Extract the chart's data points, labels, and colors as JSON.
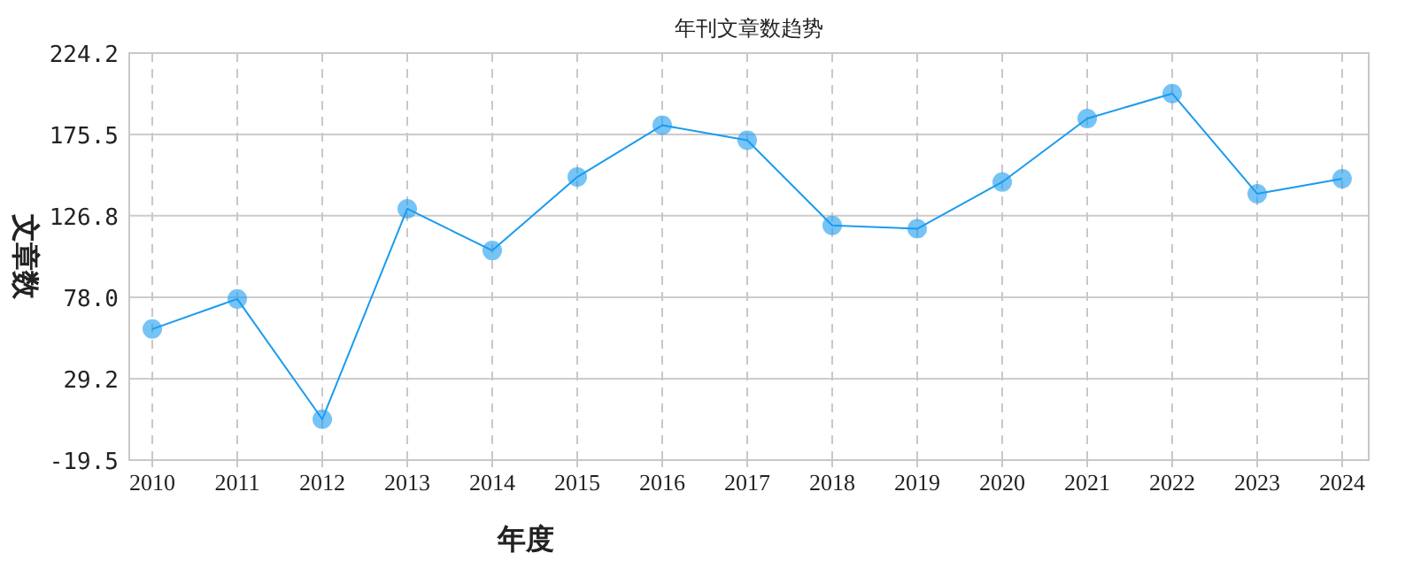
{
  "chart_data": {
    "type": "line",
    "title": "年刊文章数趋势",
    "xlabel": "年度",
    "ylabel": "文章数",
    "categories": [
      "2010",
      "2011",
      "2012",
      "2013",
      "2014",
      "2015",
      "2016",
      "2017",
      "2018",
      "2019",
      "2020",
      "2021",
      "2022",
      "2023",
      "2024"
    ],
    "series": [
      {
        "color": "#1a9bf0",
        "values": [
          59,
          77,
          5,
          131,
          106,
          150,
          181,
          172,
          121,
          119,
          147,
          185,
          200,
          140,
          149
        ]
      }
    ],
    "ylim": [
      -19.5,
      224.2
    ],
    "yticks": [
      {
        "value": -19.5,
        "label": "-19.5"
      },
      {
        "value": 29.2,
        "label": "29.2"
      },
      {
        "value": 78.0,
        "label": "78.0"
      },
      {
        "value": 126.8,
        "label": "126.8"
      },
      {
        "value": 175.5,
        "label": "175.5"
      },
      {
        "value": 224.2,
        "label": "224.2"
      }
    ],
    "grid": true,
    "marker": "circle",
    "line_style": "solid"
  }
}
